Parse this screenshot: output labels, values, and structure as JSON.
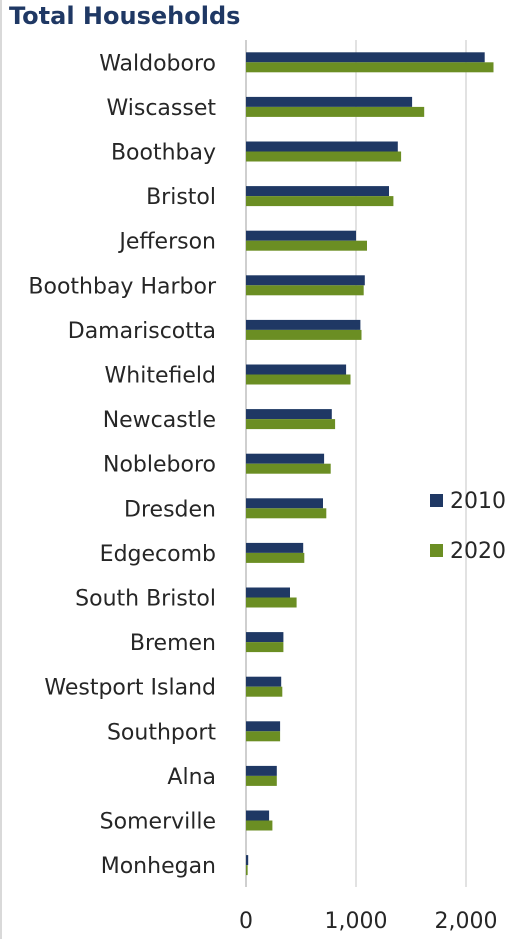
{
  "chart_data": {
    "type": "bar",
    "orientation": "horizontal",
    "title": "Total Households",
    "xlabel": "",
    "ylabel": "",
    "xlim": [
      0,
      2300
    ],
    "xticks": [
      0,
      1000,
      2000
    ],
    "xtick_labels": [
      "0",
      "1,000",
      "2,000"
    ],
    "grid": true,
    "legend_position": "right",
    "categories": [
      "Waldoboro",
      "Wiscasset",
      "Boothbay",
      "Bristol",
      "Jefferson",
      "Boothbay Harbor",
      "Damariscotta",
      "Whitefield",
      "Newcastle",
      "Nobleboro",
      "Dresden",
      "Edgecomb",
      "South Bristol",
      "Bremen",
      "Westport Island",
      "Southport",
      "Alna",
      "Somerville",
      "Monhegan"
    ],
    "series": [
      {
        "name": "2010",
        "color": "#1f3864",
        "values": [
          2170,
          1510,
          1380,
          1300,
          1000,
          1080,
          1040,
          910,
          780,
          710,
          700,
          520,
          400,
          340,
          320,
          310,
          280,
          210,
          20
        ]
      },
      {
        "name": "2020",
        "color": "#6b8e23",
        "values": [
          2250,
          1620,
          1410,
          1340,
          1100,
          1070,
          1050,
          950,
          810,
          770,
          730,
          530,
          460,
          340,
          330,
          310,
          280,
          240,
          15
        ]
      }
    ]
  }
}
